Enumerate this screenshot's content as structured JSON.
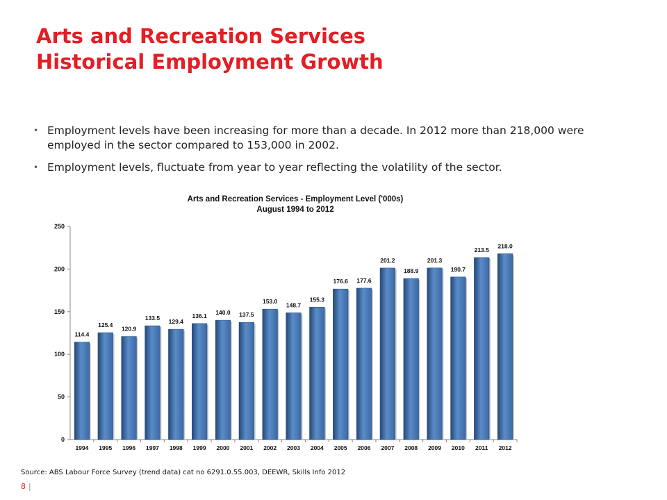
{
  "page": {
    "title_line1": "Arts and Recreation Services",
    "title_line2": "Historical Employment Growth",
    "bullets": [
      "Employment levels have been increasing for more than a decade. In 2012 more than 218,000 were employed in the sector compared to 153,000 in 2002.",
      "Employment levels, fluctuate from year to year reflecting the volatility of the sector."
    ],
    "source": "Source: ABS Labour Force Survey (trend data) cat no 6291.0.55.003, DEEWR, Skills Info 2012",
    "page_number": "8",
    "page_separator": "|"
  },
  "colors": {
    "title": "#e31e24",
    "bar": "#3a6aa6",
    "bar_highlight": "#5b8cc8",
    "bar_shadow": "#23497a"
  },
  "chart_data": {
    "type": "bar",
    "title": "Arts and Recreation Services - Employment Level ('000s)",
    "subtitle": "August 1994 to 2012",
    "categories": [
      "1994",
      "1995",
      "1996",
      "1997",
      "1998",
      "1999",
      "2000",
      "2001",
      "2002",
      "2003",
      "2004",
      "2005",
      "2006",
      "2007",
      "2008",
      "2009",
      "2010",
      "2011",
      "2012"
    ],
    "values": [
      114.4,
      125.4,
      120.9,
      133.5,
      129.4,
      136.1,
      140.0,
      137.5,
      153.0,
      148.7,
      155.3,
      176.6,
      177.6,
      201.2,
      188.9,
      201.3,
      190.7,
      213.5,
      218.0
    ],
    "value_labels": [
      "114.4",
      "125.4",
      "120.9",
      "133.5",
      "129.4",
      "136.1",
      "140.0",
      "137.5",
      "153.0",
      "148.7",
      "155.3",
      "176.6",
      "177.6",
      "201.2",
      "188.9",
      "201.3",
      "190.7",
      "213.5",
      "218.0"
    ],
    "ylim": [
      0,
      250
    ],
    "yticks": [
      0,
      50,
      100,
      150,
      200,
      250
    ],
    "ytick_labels": [
      "0",
      "50",
      "100",
      "150",
      "200",
      "250"
    ],
    "xlabel": "",
    "ylabel": "",
    "grid": false,
    "legend": "none"
  }
}
